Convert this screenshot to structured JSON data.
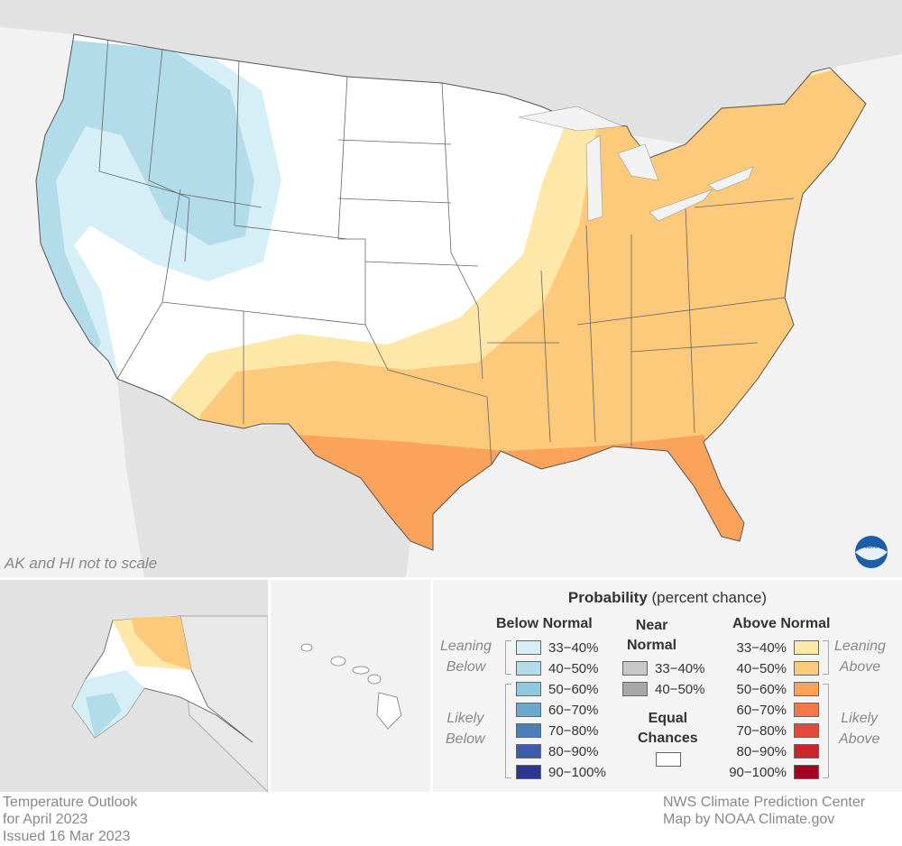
{
  "map": {
    "note": "AK and HI not to scale",
    "logo": "NOAA",
    "colors": {
      "land": "#e2e2e2",
      "water": "#f2f2f2",
      "equal_chances": "#ffffff"
    }
  },
  "legend": {
    "title_bold": "Probability",
    "title_rest": " (percent chance)",
    "below": {
      "heading": "Below Normal",
      "leaning": [
        "Leaning",
        "Below"
      ],
      "likely": [
        "Likely",
        "Below"
      ],
      "items": [
        {
          "label": "33−40%",
          "color": "#d6eef5"
        },
        {
          "label": "40−50%",
          "color": "#b3dcea"
        },
        {
          "label": "50−60%",
          "color": "#8ec8df"
        },
        {
          "label": "60−70%",
          "color": "#6aa8cd"
        },
        {
          "label": "70−80%",
          "color": "#4b7fbc"
        },
        {
          "label": "80−90%",
          "color": "#3d5ba8"
        },
        {
          "label": "90−100%",
          "color": "#2c3591"
        }
      ]
    },
    "near": {
      "heading": [
        "Near",
        "Normal"
      ],
      "items": [
        {
          "label": "33−40%",
          "color": "#c8c8c8"
        },
        {
          "label": "40−50%",
          "color": "#a6a6a6"
        }
      ]
    },
    "equal": {
      "heading": [
        "Equal",
        "Chances"
      ],
      "color": "#ffffff"
    },
    "above": {
      "heading": "Above Normal",
      "leaning": [
        "Leaning",
        "Above"
      ],
      "likely": [
        "Likely",
        "Above"
      ],
      "items": [
        {
          "label": "33−40%",
          "color": "#fde7a9"
        },
        {
          "label": "40−50%",
          "color": "#fdc97a"
        },
        {
          "label": "50−60%",
          "color": "#fca35b"
        },
        {
          "label": "60−70%",
          "color": "#f6784a"
        },
        {
          "label": "70−80%",
          "color": "#e04a36"
        },
        {
          "label": "80−90%",
          "color": "#c9252a"
        },
        {
          "label": "90−100%",
          "color": "#a30023"
        }
      ]
    }
  },
  "footer": {
    "left": [
      "Temperature Outlook",
      "for April 2023",
      "Issued 16 Mar 2023"
    ],
    "right": [
      "NWS Climate Prediction Center",
      "Map by NOAA Climate.gov"
    ]
  }
}
